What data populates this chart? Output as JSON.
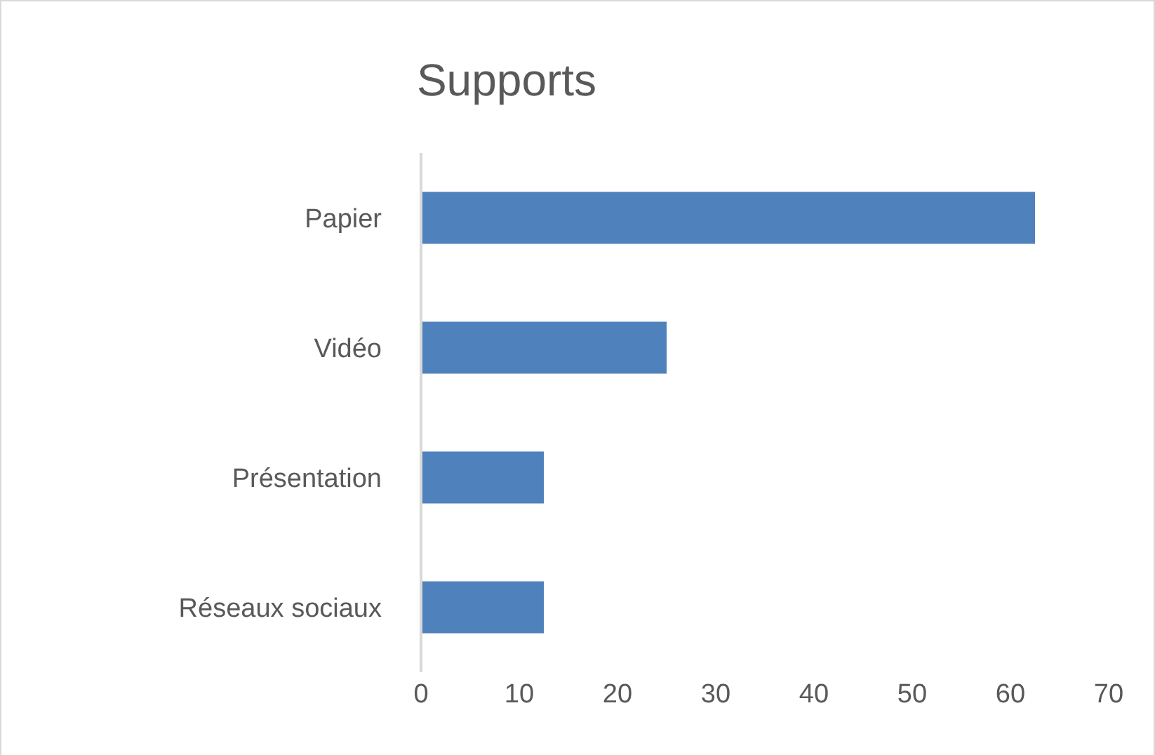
{
  "chart_data": {
    "type": "bar",
    "orientation": "horizontal",
    "title": "Supports",
    "categories": [
      "Papier",
      "Vidéo",
      "Présentation",
      "Réseaux sociaux"
    ],
    "values": [
      62.5,
      25,
      12.5,
      12.5
    ],
    "color": "#4f81bd",
    "xlim": [
      0,
      70
    ],
    "xticks": [
      0,
      10,
      20,
      30,
      40,
      50,
      60,
      70
    ],
    "grid": false
  }
}
